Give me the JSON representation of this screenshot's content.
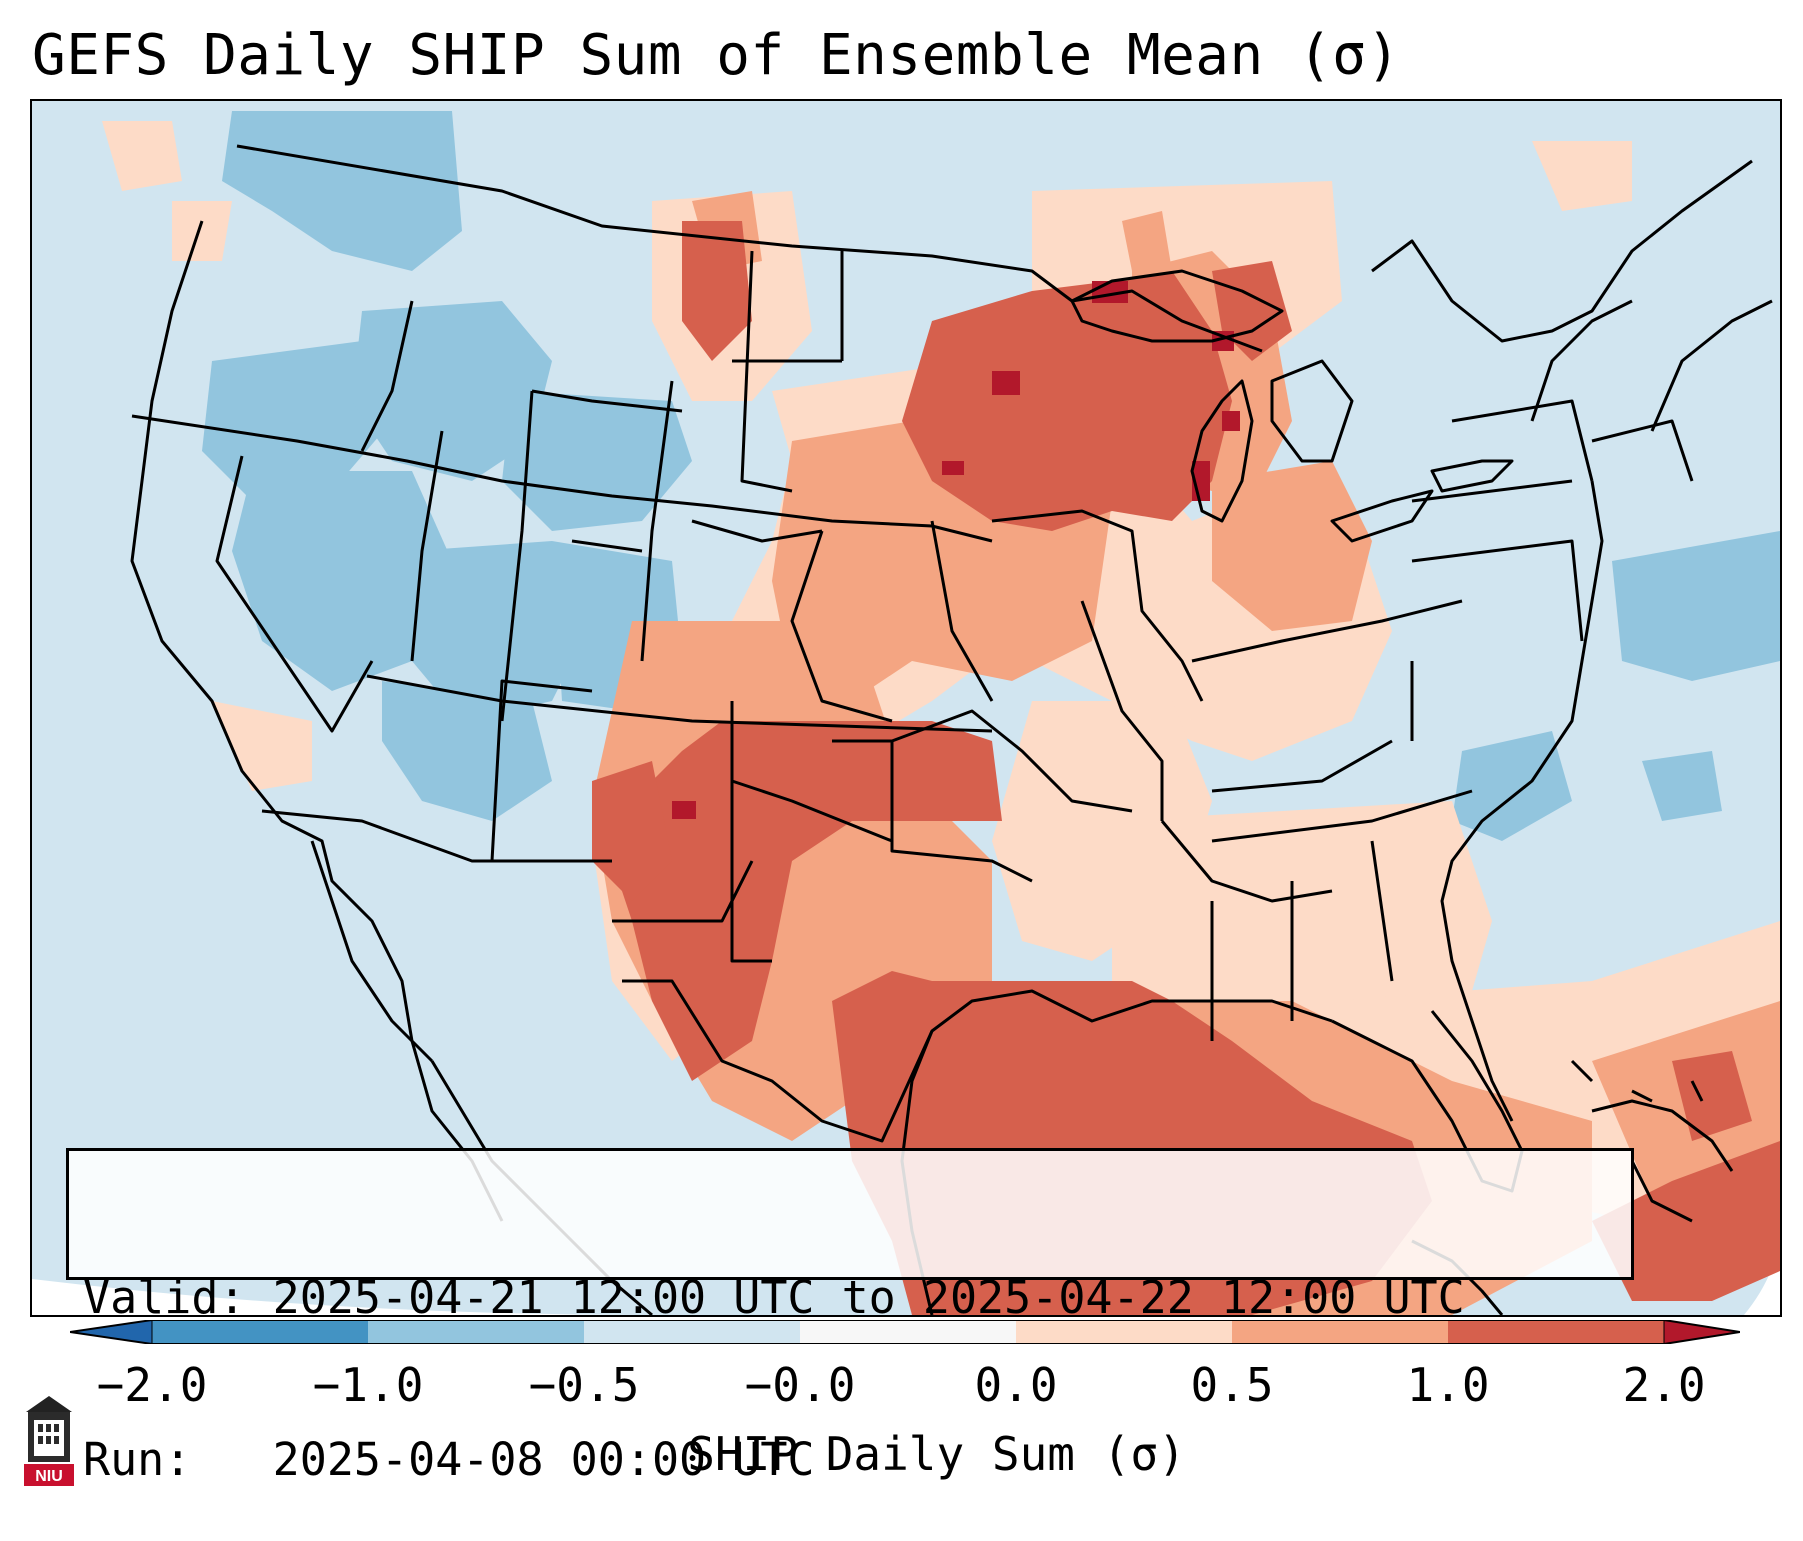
{
  "title": "GEFS Daily SHIP Sum of Ensemble Mean (σ)",
  "info": {
    "valid_label": "Valid:",
    "valid_value": "2025-04-21 12:00 UTC to 2025-04-22 12:00 UTC",
    "run_label": "Run:",
    "run_value": "2025-04-08 00:00 UTC"
  },
  "colorbar": {
    "label": "SHIP Daily Sum (σ)",
    "ticks": [
      "−2.0",
      "−1.0",
      "−0.5",
      "−0.0",
      "0.0",
      "0.5",
      "1.0",
      "2.0"
    ],
    "colors": {
      "under": "#2166ac",
      "bin_m2_m1": "#4393c3",
      "bin_m1_m05": "#92c5de",
      "bin_m05_0": "#d1e5f0",
      "bin_0": "#f7f7f7",
      "bin_0_05": "#fddbc7",
      "bin_05_1": "#f4a582",
      "bin_1_2": "#d6604d",
      "over": "#b2182b"
    }
  },
  "map_colors": {
    "background_light_blue": "#d1e5f0",
    "medium_blue": "#92c5de",
    "light_red": "#fddbc7",
    "medium_red": "#f4a582",
    "red": "#d6604d",
    "dark_red": "#b2182b",
    "border": "#000000"
  },
  "logo": {
    "text": "NIU",
    "icon": "university-tower-icon"
  }
}
